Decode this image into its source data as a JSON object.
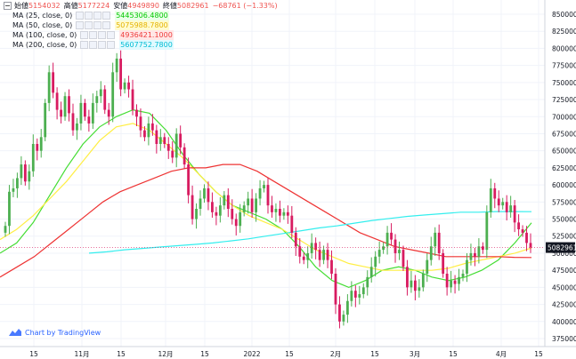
{
  "legend": {
    "open_label": "始値",
    "open_value": "5154032",
    "high_label": "高値",
    "high_value": "5177224",
    "low_label": "安値",
    "low_value": "4949890",
    "close_label": "終値",
    "close_value": "5082961",
    "change": "−68761 (−1.33%)",
    "indicators": [
      {
        "name": "MA (25, close, 0)",
        "value": "5445306.4800",
        "color": "#00c800",
        "bg": "#eaffe8"
      },
      {
        "name": "MA (50, close, 0)",
        "value": "5075988.7800",
        "color": "#e4b400",
        "bg": "#fffbd0"
      },
      {
        "name": "MA (100, close, 0)",
        "value": "4936421.1000",
        "color": "#ef3c3c",
        "bg": "#ffe6e6"
      },
      {
        "name": "MA (200, close, 0)",
        "value": "5607752.7800",
        "color": "#00bcd4",
        "bg": "#e0faff"
      }
    ]
  },
  "branding": {
    "text": "Chart by TradingView",
    "icon": "tradingview-logo-icon"
  },
  "colors": {
    "up": "#26a69a",
    "up_candle": "#4caf50",
    "down": "#d81b60",
    "grid": "#f0f3fa",
    "ma25": "#44dd33",
    "ma50": "#ffee44",
    "ma100": "#ee3333",
    "ma200": "#33eeee",
    "last_price_label": "#131722"
  },
  "chart_data": {
    "type": "line",
    "title": "",
    "xlabel": "",
    "ylabel": "",
    "x_ticks": [
      "15",
      "11月",
      "15",
      "12月",
      "15",
      "2022",
      "15",
      "2月",
      "15",
      "3月",
      "15",
      "4月",
      "15"
    ],
    "y_ticks": [
      "3750000",
      "4000000",
      "4250000",
      "4500000",
      "4750000",
      "5000000",
      "5250000",
      "5500000",
      "5750000",
      "6000000",
      "6250000",
      "6500000",
      "6750000",
      "7000000",
      "7250000",
      "7500000",
      "7750000",
      "8000000",
      "8250000",
      "8500000"
    ],
    "ylim": [
      3650000,
      8600000
    ],
    "last_price": "5082961",
    "grid": true,
    "candles_close": [
      5400000,
      5900000,
      5950000,
      6100000,
      6300000,
      6050000,
      6200000,
      6600000,
      6500000,
      6700000,
      7200000,
      7650000,
      7350000,
      7100000,
      7000000,
      7300000,
      7050000,
      6800000,
      6900000,
      7200000,
      7000000,
      6900000,
      7200000,
      7300000,
      7400000,
      7100000,
      7000000,
      7650000,
      7850000,
      7400000,
      7500000,
      7400000,
      7100000,
      7000000,
      6800000,
      6700000,
      6900000,
      6800000,
      6600000,
      6700000,
      6600000,
      6500000,
      6400000,
      6750000,
      6550000,
      6300000,
      5850000,
      5500000,
      5650000,
      5800000,
      5950000,
      5750000,
      5600000,
      5550000,
      5700000,
      5850000,
      5650000,
      5500000,
      5400000,
      5600000,
      5700000,
      5800000,
      5600000,
      5800000,
      5950000,
      6000000,
      5700000,
      5600000,
      5650000,
      5550000,
      5600000,
      5550000,
      5300000,
      5100000,
      4950000,
      4900000,
      5000000,
      5150000,
      5050000,
      4900000,
      5050000,
      4900000,
      4700000,
      4250000,
      4000000,
      4100000,
      4300000,
      4450000,
      4350000,
      4400000,
      4500000,
      4650000,
      4800000,
      4950000,
      5050000,
      5100000,
      5300000,
      5200000,
      5000000,
      5050000,
      4800000,
      4500000,
      4600000,
      4450000,
      4500000,
      4700000,
      4900000,
      5100000,
      5300000,
      5000000,
      4700000,
      4500000,
      4600000,
      4550000,
      4650000,
      4700000,
      4900000,
      5000000,
      4950000,
      5100000,
      5050000,
      5600000,
      5950000,
      5800000,
      5700000,
      5750000,
      5600000,
      5700000,
      5450000,
      5350000,
      5300000,
      5150000,
      5082961
    ],
    "series": [
      {
        "name": "MA (25, close, 0)",
        "values": [
          5000000,
          5150000,
          5450000,
          5850000,
          6250000,
          6600000,
          6850000,
          7000000,
          7100000,
          7050000,
          6800000,
          6450000,
          6150000,
          5900000,
          5700000,
          5600000,
          5500000,
          5350000,
          5100000,
          4800000,
          4600000,
          4500000,
          4600000,
          4750000,
          4800000,
          4750000,
          4650000,
          4600000,
          4650000,
          4750000,
          4900000,
          5150000,
          5445306
        ]
      },
      {
        "name": "MA (50, close, 0)",
        "values": [
          5200000,
          5350000,
          5550000,
          5800000,
          6050000,
          6350000,
          6650000,
          6850000,
          6900000,
          6800000,
          6600000,
          6400000,
          6150000,
          5900000,
          5700000,
          5550000,
          5450000,
          5350000,
          5200000,
          5050000,
          4950000,
          4850000,
          4800000,
          4750000,
          4750000,
          4750000,
          4750000,
          4780000,
          4850000,
          4900000,
          4950000,
          5000000,
          5075988
        ]
      },
      {
        "name": "MA (100, close, 0)",
        "values": [
          4650000,
          4800000,
          4950000,
          5150000,
          5350000,
          5550000,
          5750000,
          5900000,
          6000000,
          6100000,
          6200000,
          6250000,
          6250000,
          6300000,
          6300000,
          6200000,
          6050000,
          5900000,
          5750000,
          5600000,
          5450000,
          5300000,
          5200000,
          5100000,
          5050000,
          5000000,
          4950000,
          4950000,
          4950000,
          4950000,
          4940000,
          4936421
        ]
      },
      {
        "name": "MA (200, close, 0)",
        "values": [
          5000000,
          5020000,
          5050000,
          5070000,
          5090000,
          5110000,
          5130000,
          5150000,
          5180000,
          5210000,
          5250000,
          5290000,
          5330000,
          5370000,
          5400000,
          5440000,
          5480000,
          5510000,
          5540000,
          5560000,
          5580000,
          5600000,
          5600000,
          5610000,
          5610000,
          5607752
        ]
      }
    ]
  }
}
